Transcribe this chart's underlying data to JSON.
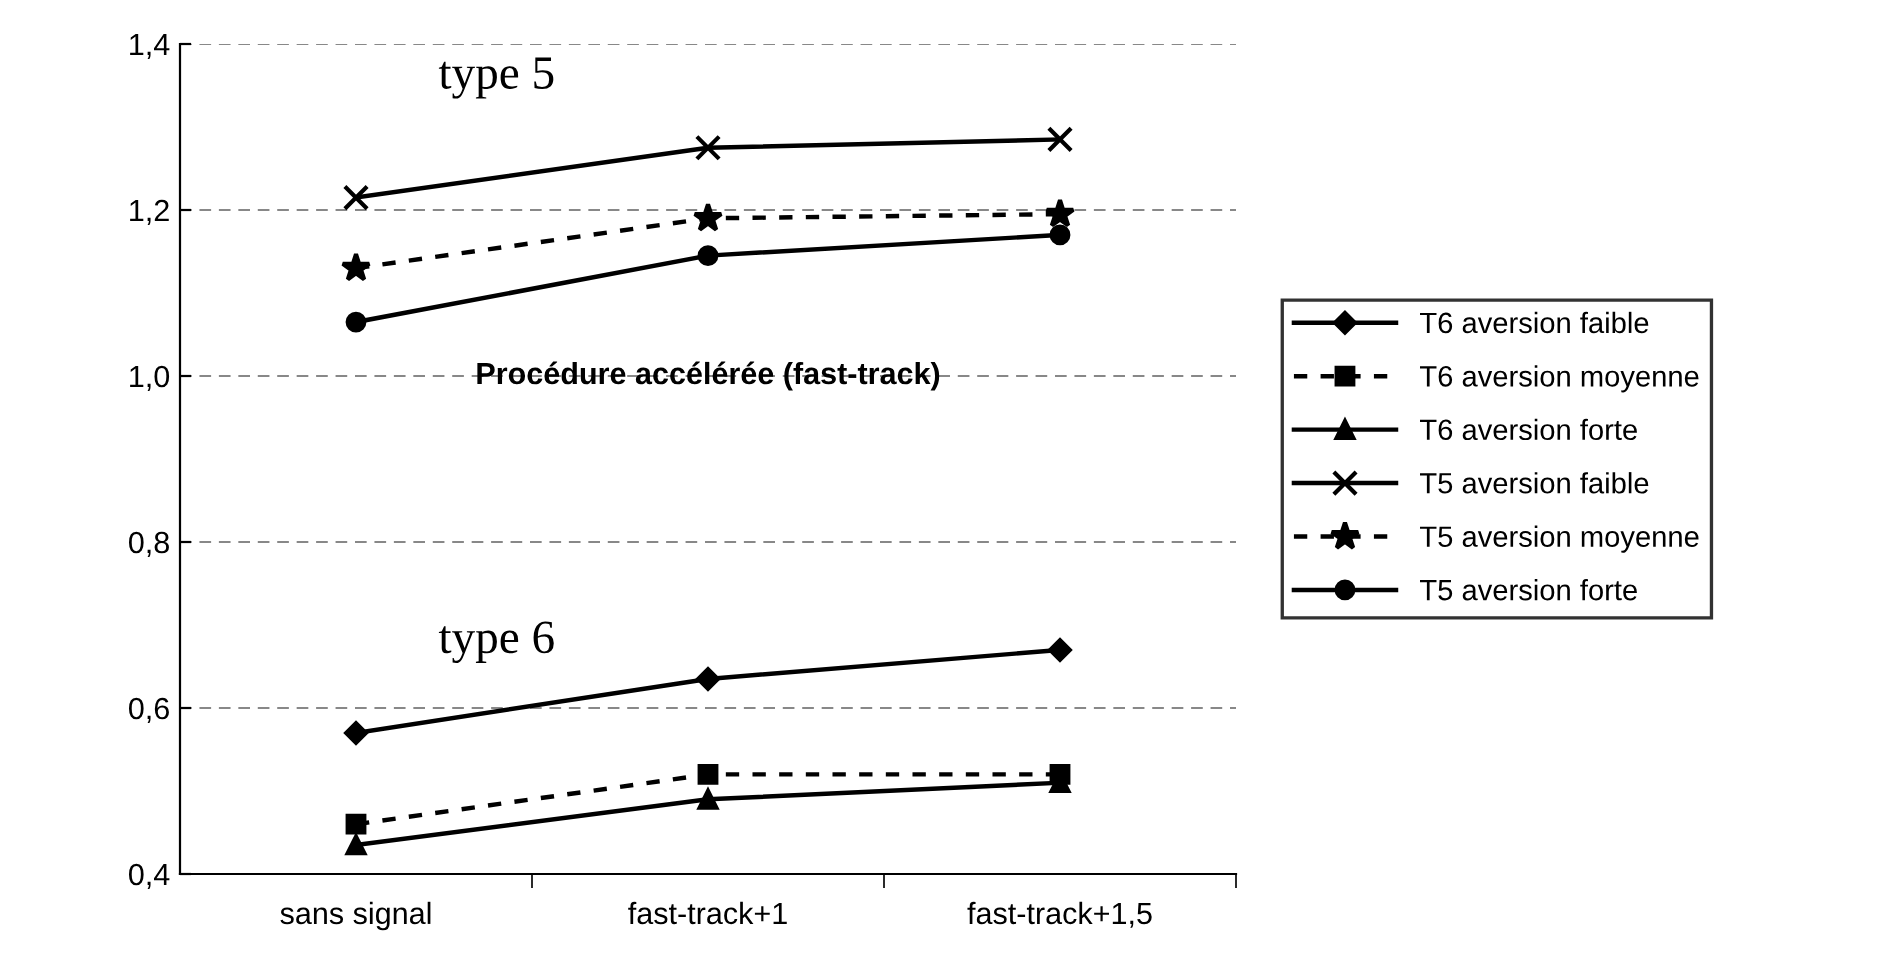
{
  "chart_data": {
    "type": "line",
    "title": "Procédure accélérée (fast-track)",
    "categories": [
      "sans signal",
      "fast-track+1",
      "fast-track+1,5"
    ],
    "series": [
      {
        "name": "T6 aversion faible",
        "color": "#000000",
        "marker": "diamond",
        "line_style": "solid",
        "values": [
          0.57,
          0.635,
          0.67
        ]
      },
      {
        "name": "T6 aversion moyenne",
        "color": "#000000",
        "marker": "square",
        "line_style": "dotted",
        "values": [
          0.46,
          0.52,
          0.52
        ]
      },
      {
        "name": "T6 aversion forte",
        "color": "#000000",
        "marker": "triangle",
        "line_style": "solid",
        "values": [
          0.435,
          0.49,
          0.51
        ]
      },
      {
        "name": "T5 aversion faible",
        "color": "#000000",
        "marker": "cross",
        "line_style": "solid",
        "values": [
          1.215,
          1.275,
          1.285
        ]
      },
      {
        "name": "T5 aversion moyenne",
        "color": "#000000",
        "marker": "star",
        "line_style": "dotted",
        "values": [
          1.13,
          1.19,
          1.195
        ]
      },
      {
        "name": "T5 aversion forte",
        "color": "#000000",
        "marker": "circle",
        "line_style": "solid",
        "values": [
          1.065,
          1.145,
          1.17
        ]
      }
    ],
    "annotations": [
      "type 5",
      "type 6"
    ],
    "ylim": [
      0.4,
      1.4
    ],
    "yticks": [
      {
        "value": 0.4,
        "label": "0,4"
      },
      {
        "value": 0.6,
        "label": "0,6"
      },
      {
        "value": 0.8,
        "label": "0,8"
      },
      {
        "value": 1.0,
        "label": "1,0"
      },
      {
        "value": 1.2,
        "label": "1,2"
      },
      {
        "value": 1.4,
        "label": "1,4"
      }
    ],
    "grid": "y",
    "legend": "right"
  }
}
